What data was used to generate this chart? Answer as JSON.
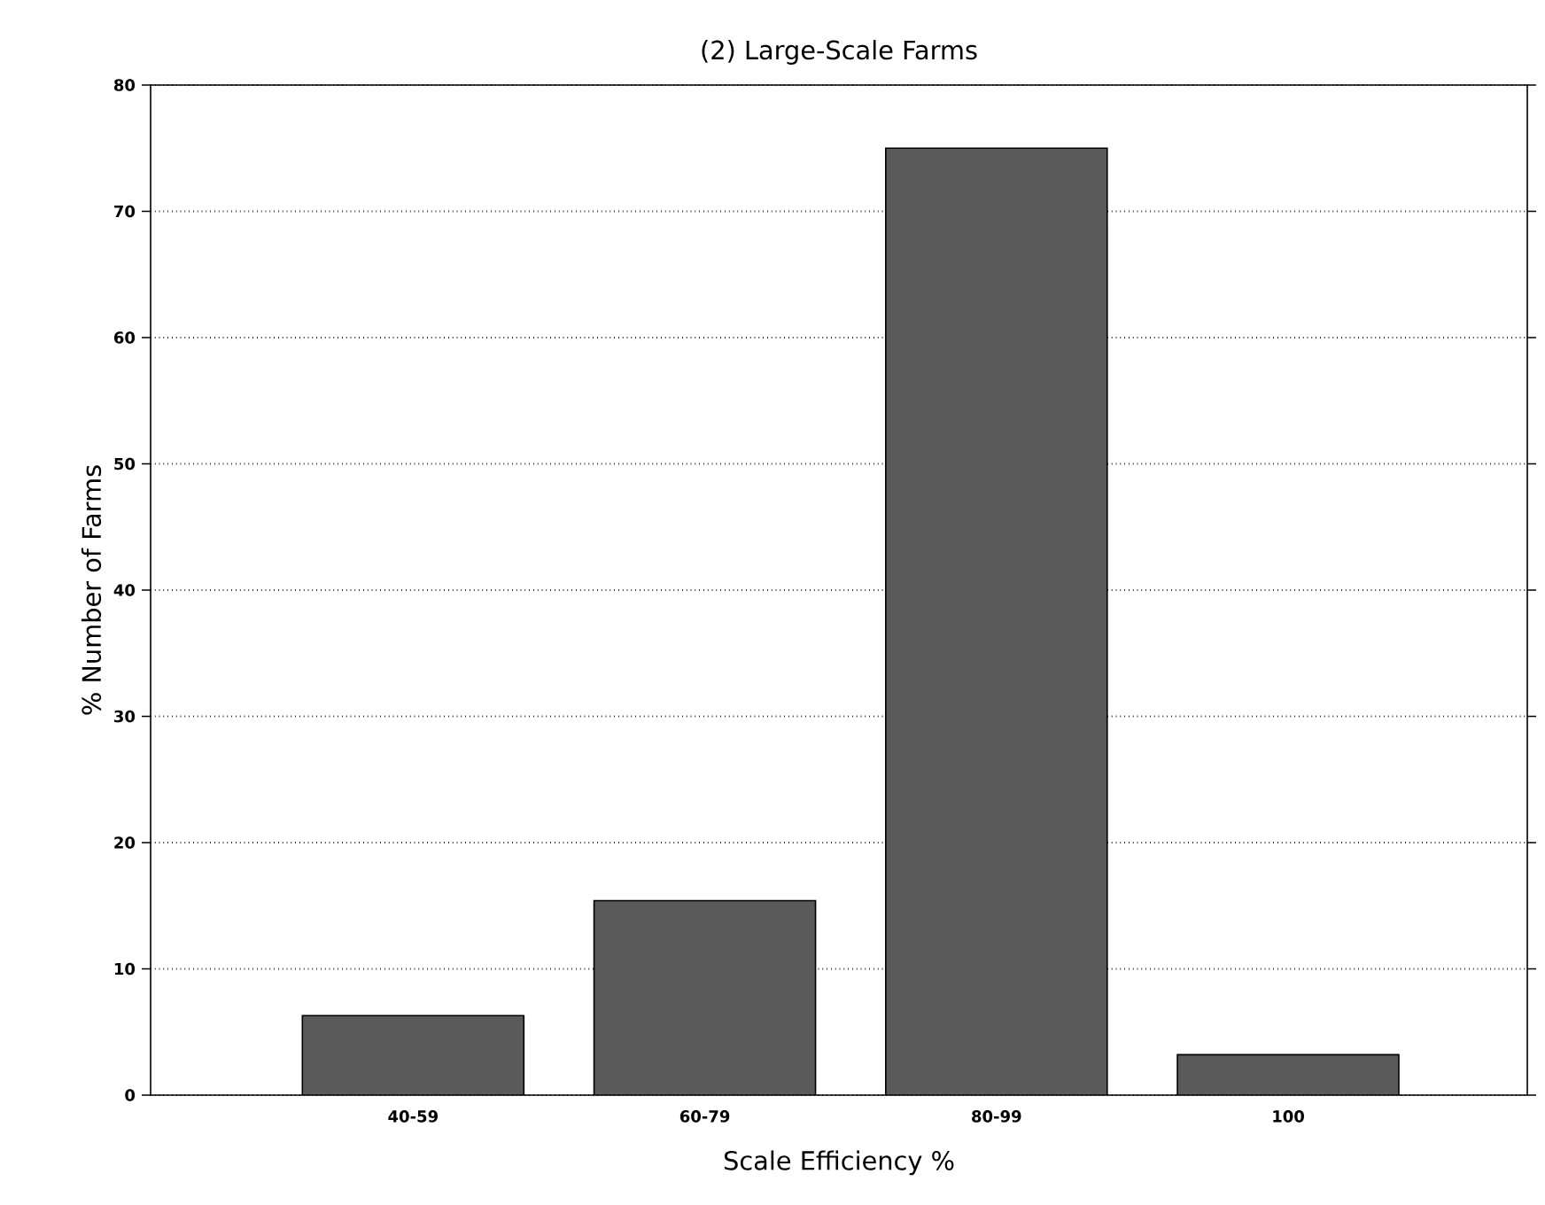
{
  "chart_data": {
    "type": "bar",
    "title": "(2) Large-Scale Farms",
    "xlabel": "Scale Efficiency %",
    "ylabel": "% Number of Farms",
    "categories": [
      "40-59",
      "60-79",
      "80-99",
      "100"
    ],
    "values": [
      6.3,
      15.4,
      75,
      3.2
    ],
    "color": "#5a5a5a",
    "ylim": [
      0,
      80
    ],
    "yticks": [
      0,
      10,
      20,
      30,
      40,
      50,
      60,
      70,
      80
    ],
    "grid": "y"
  }
}
